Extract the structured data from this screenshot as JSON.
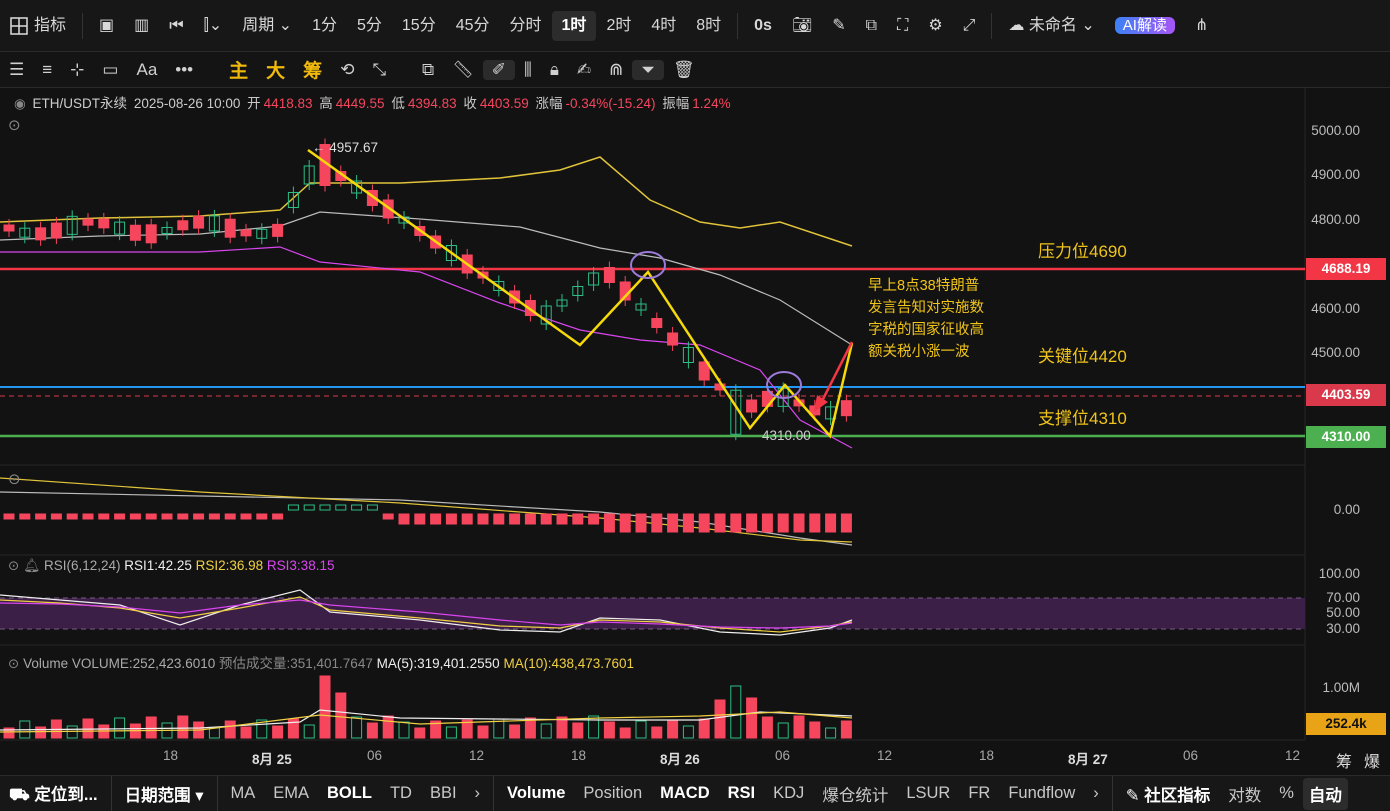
{
  "top": {
    "indicator_label": "指标",
    "period_label": "周期",
    "intervals": [
      "1分",
      "5分",
      "15分",
      "45分",
      "分时",
      "1时",
      "2时",
      "4时",
      "8时"
    ],
    "active_interval": "1时",
    "countdown": "0s",
    "layout_name": "未命名",
    "ai_label": "AI解读"
  },
  "toolbar": {
    "font_label": "Aa",
    "more_label": "•••",
    "main_label": "主",
    "big_label": "大",
    "chip_label": "筹"
  },
  "info": {
    "symbol": "ETH/USDT永续",
    "datetime": "2025-08-26 10:00",
    "open_label": "开",
    "open": "4418.83",
    "high_label": "高",
    "high": "4449.55",
    "low_label": "低",
    "low": "4394.83",
    "close_label": "收",
    "close": "4403.59",
    "change_label": "涨幅",
    "change": "-0.34%(-15.24)",
    "amp_label": "振幅",
    "amp": "1.24%"
  },
  "price_axis": [
    "5000.00",
    "4900.00",
    "4800.00",
    "4600.00",
    "4500.00"
  ],
  "price_tags": {
    "resistance": "4688.19",
    "current": "4403.59",
    "support": "4310.00",
    "volume": "252.4k"
  },
  "annotations": {
    "resistance": "压力位4690",
    "key": "关键位4420",
    "support": "支撑位4310",
    "high_marker": "← 4957.67",
    "low_marker": "4310.00",
    "note_lines": [
      "早上8点38特朗普",
      "发言告知对实施数",
      "字税的国家征收高",
      "额关税小涨一波"
    ]
  },
  "macd": {
    "zero": "0.00"
  },
  "rsi": {
    "label": "RSI(6,12,24)",
    "rsi1": "RSI1:42.25",
    "rsi2": "RSI2:36.98",
    "rsi3": "RSI3:38.15",
    "levels": [
      "100.00",
      "70.00",
      "50.00",
      "30.00"
    ]
  },
  "volume": {
    "label": "Volume",
    "vol": "VOLUME:252,423.6010",
    "est": "预估成交量:351,401.7647",
    "ma5": "MA(5):319,401.2550",
    "ma10": "MA(10):438,473.7601",
    "axis": "1.00M"
  },
  "xaxis": [
    "18",
    "8月 25",
    "06",
    "12",
    "18",
    "8月 26",
    "06",
    "12",
    "18",
    "8月 27",
    "06",
    "12"
  ],
  "xaxis_right": [
    "筹",
    "爆"
  ],
  "bottom": {
    "locate": "定位到...",
    "range": "日期范围",
    "left_items": [
      "MA",
      "EMA",
      "BOLL",
      "TD",
      "BBI"
    ],
    "right_items": [
      "Volume",
      "Position",
      "MACD",
      "RSI",
      "KDJ",
      "爆仓统计",
      "LSUR",
      "FR",
      "Fundflow"
    ],
    "community": "社区指标",
    "log": "对数",
    "percent": "%",
    "auto": "自动"
  },
  "colors": {
    "up": "#2ebd85",
    "down": "#f6465d",
    "resistance_line": "#f23645",
    "key_line": "#2196f3",
    "support_line": "#4caf50",
    "annotation": "#f0c419"
  }
}
